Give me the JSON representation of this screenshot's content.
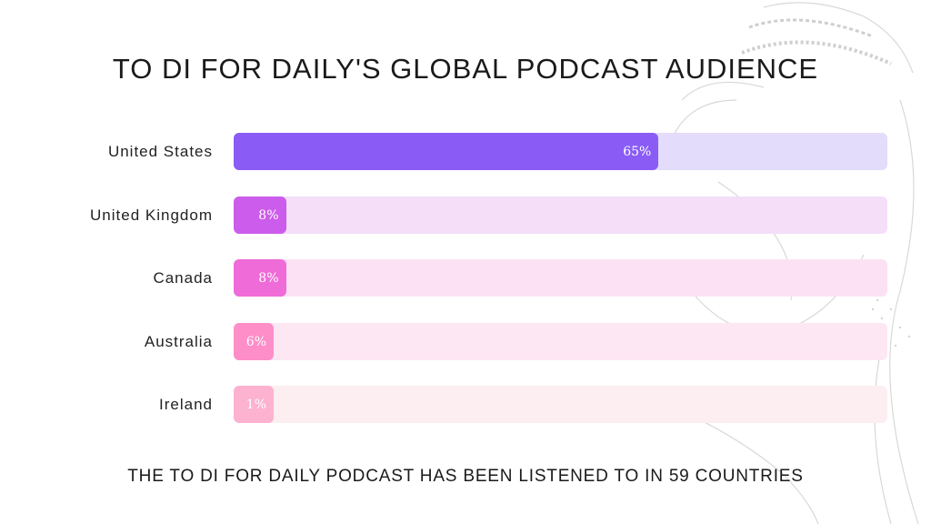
{
  "title": "TO DI FOR DAILY'S GLOBAL PODCAST AUDIENCE",
  "footer": "THE TO DI FOR DAILY PODCAST HAS BEEN LISTENED TO IN 59 COUNTRIES",
  "chart_data": {
    "type": "bar",
    "orientation": "horizontal",
    "categories": [
      "United States",
      "United Kingdom",
      "Canada",
      "Australia",
      "Ireland"
    ],
    "values": [
      65,
      8,
      8,
      6,
      1
    ],
    "value_labels": [
      "65%",
      "8%",
      "8%",
      "6%",
      "1%"
    ],
    "bar_colors": [
      "#8a5cf5",
      "#cc5ceb",
      "#ef6cd8",
      "#fd8ec8",
      "#fdb2cf"
    ],
    "track_colors": [
      "#e4dcfb",
      "#f4def8",
      "#fce1f4",
      "#fde7f3",
      "#fdeef1"
    ],
    "unit": "%",
    "grid": false,
    "legend": "none"
  }
}
